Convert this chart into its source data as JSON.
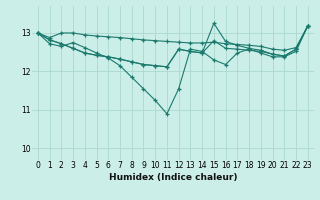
{
  "title": "",
  "xlabel": "Humidex (Indice chaleur)",
  "xlim": [
    -0.5,
    23.5
  ],
  "ylim": [
    9.7,
    13.7
  ],
  "background_color": "#cceee8",
  "grid_color": "#aad8d0",
  "line_color": "#1a7a6e",
  "lines": [
    [
      13.0,
      12.88,
      13.0,
      13.0,
      12.95,
      12.92,
      12.9,
      12.88,
      12.85,
      12.82,
      12.8,
      12.78,
      12.76,
      12.74,
      12.74,
      12.76,
      12.72,
      12.7,
      12.68,
      12.65,
      12.58,
      12.55,
      12.62,
      13.18
    ],
    [
      13.0,
      12.72,
      12.65,
      12.75,
      12.62,
      12.48,
      12.35,
      12.15,
      11.85,
      11.55,
      11.25,
      10.9,
      11.55,
      12.58,
      12.52,
      12.3,
      12.18,
      12.48,
      12.58,
      12.48,
      12.38,
      12.38,
      12.52,
      13.18
    ],
    [
      13.0,
      12.82,
      12.72,
      12.6,
      12.48,
      12.42,
      12.38,
      12.32,
      12.25,
      12.18,
      12.15,
      12.12,
      12.58,
      12.52,
      12.48,
      13.25,
      12.78,
      12.68,
      12.6,
      12.55,
      12.45,
      12.4,
      12.58,
      13.18
    ],
    [
      13.0,
      12.82,
      12.72,
      12.6,
      12.48,
      12.42,
      12.38,
      12.32,
      12.25,
      12.18,
      12.15,
      12.12,
      12.58,
      12.52,
      12.48,
      12.8,
      12.6,
      12.58,
      12.55,
      12.52,
      12.45,
      12.4,
      12.58,
      13.18
    ]
  ],
  "xticks": [
    0,
    1,
    2,
    3,
    4,
    5,
    6,
    7,
    8,
    9,
    10,
    11,
    12,
    13,
    14,
    15,
    16,
    17,
    18,
    19,
    20,
    21,
    22,
    23
  ],
  "yticks": [
    10,
    11,
    12,
    13
  ],
  "tick_fontsize": 5.5,
  "label_fontsize": 6.5
}
